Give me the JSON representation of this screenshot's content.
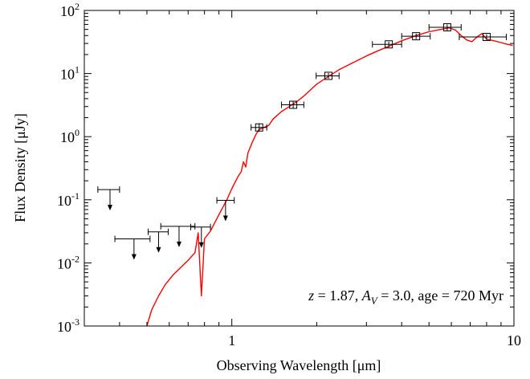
{
  "chart_data": {
    "type": "scatter",
    "xlabel": "Observing Wavelength [μm]",
    "ylabel": "Flux Density [μJy]",
    "xscale": "log",
    "yscale": "log",
    "xlim": [
      0.3,
      10
    ],
    "ylim": [
      0.001,
      100
    ],
    "x_ticks": [
      {
        "value": 1,
        "label": "1"
      },
      {
        "value": 10,
        "label": "10"
      }
    ],
    "y_ticks": [
      {
        "value": 0.001,
        "base": "10",
        "exp": "-3"
      },
      {
        "value": 0.01,
        "base": "10",
        "exp": "-2"
      },
      {
        "value": 0.1,
        "base": "10",
        "exp": "-1"
      },
      {
        "value": 1,
        "base": "10",
        "exp": "0"
      },
      {
        "value": 10,
        "base": "10",
        "exp": "1"
      },
      {
        "value": 100,
        "base": "10",
        "exp": "2"
      }
    ],
    "grid": false,
    "annotation": {
      "z_var": "z",
      "z_text": " = 1.87, ",
      "a_var": "A",
      "a_sub": "V",
      "a_text": " = 3.0, age = 720 Myr"
    },
    "model_color": "#ff0000",
    "detections": [
      {
        "x": 1.25,
        "y": 1.4,
        "xlo": 1.17,
        "xhi": 1.33,
        "ylo": 1.2,
        "yhi": 1.62
      },
      {
        "x": 1.65,
        "y": 3.2,
        "xlo": 1.5,
        "xhi": 1.8,
        "ylo": 2.85,
        "yhi": 3.6
      },
      {
        "x": 2.2,
        "y": 9.2,
        "xlo": 1.99,
        "xhi": 2.4,
        "ylo": 8.3,
        "yhi": 10.2
      },
      {
        "x": 3.6,
        "y": 29,
        "xlo": 3.15,
        "xhi": 4.0,
        "ylo": 26,
        "yhi": 32
      },
      {
        "x": 4.5,
        "y": 39,
        "xlo": 4.0,
        "xhi": 5.05,
        "ylo": 35,
        "yhi": 43
      },
      {
        "x": 5.8,
        "y": 54,
        "xlo": 5.0,
        "xhi": 6.5,
        "ylo": 48,
        "yhi": 60
      },
      {
        "x": 8.0,
        "y": 38,
        "xlo": 6.4,
        "xhi": 9.4,
        "ylo": 34,
        "yhi": 42
      }
    ],
    "upper_limits": [
      {
        "x": 0.37,
        "y": 0.145,
        "xlo": 0.335,
        "xhi": 0.4
      },
      {
        "x": 0.45,
        "y": 0.024,
        "xlo": 0.385,
        "xhi": 0.513
      },
      {
        "x": 0.55,
        "y": 0.031,
        "xlo": 0.505,
        "xhi": 0.595
      },
      {
        "x": 0.65,
        "y": 0.038,
        "xlo": 0.56,
        "xhi": 0.74
      },
      {
        "x": 0.78,
        "y": 0.037,
        "xlo": 0.715,
        "xhi": 0.84
      },
      {
        "x": 0.95,
        "y": 0.098,
        "xlo": 0.885,
        "xhi": 1.02
      }
    ],
    "model": [
      [
        0.5,
        0.001
      ],
      [
        0.52,
        0.0018
      ],
      [
        0.55,
        0.003
      ],
      [
        0.58,
        0.0045
      ],
      [
        0.62,
        0.0065
      ],
      [
        0.66,
        0.0085
      ],
      [
        0.7,
        0.011
      ],
      [
        0.74,
        0.0145
      ],
      [
        0.76,
        0.03
      ],
      [
        0.78,
        0.003
      ],
      [
        0.8,
        0.024
      ],
      [
        0.84,
        0.032
      ],
      [
        0.88,
        0.048
      ],
      [
        0.92,
        0.07
      ],
      [
        0.96,
        0.1
      ],
      [
        1.0,
        0.15
      ],
      [
        1.05,
        0.23
      ],
      [
        1.08,
        0.28
      ],
      [
        1.1,
        0.4
      ],
      [
        1.12,
        0.33
      ],
      [
        1.14,
        0.55
      ],
      [
        1.18,
        0.8
      ],
      [
        1.22,
        1.1
      ],
      [
        1.25,
        1.3
      ],
      [
        1.3,
        1.4
      ],
      [
        1.35,
        1.5
      ],
      [
        1.4,
        1.9
      ],
      [
        1.5,
        2.5
      ],
      [
        1.6,
        3.0
      ],
      [
        1.7,
        3.6
      ],
      [
        1.8,
        4.4
      ],
      [
        1.9,
        5.5
      ],
      [
        2.0,
        6.8
      ],
      [
        2.2,
        9.0
      ],
      [
        2.4,
        11.5
      ],
      [
        2.7,
        15.0
      ],
      [
        3.0,
        19.0
      ],
      [
        3.3,
        23.0
      ],
      [
        3.6,
        27.0
      ],
      [
        4.0,
        33.0
      ],
      [
        4.5,
        40.0
      ],
      [
        5.0,
        46.0
      ],
      [
        5.5,
        50.0
      ],
      [
        5.9,
        53.0
      ],
      [
        6.2,
        49.0
      ],
      [
        6.5,
        40.0
      ],
      [
        6.8,
        34.0
      ],
      [
        7.1,
        32.0
      ],
      [
        7.4,
        38.0
      ],
      [
        7.7,
        43.0
      ],
      [
        8.0,
        35.0
      ],
      [
        8.5,
        33.0
      ],
      [
        9.0,
        31.0
      ],
      [
        9.5,
        29.0
      ],
      [
        9.9,
        28.0
      ]
    ]
  }
}
